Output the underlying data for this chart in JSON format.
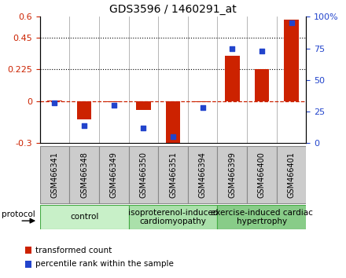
{
  "title": "GDS3596 / 1460291_at",
  "samples": [
    "GSM466341",
    "GSM466348",
    "GSM466349",
    "GSM466350",
    "GSM466351",
    "GSM466394",
    "GSM466399",
    "GSM466400",
    "GSM466401"
  ],
  "transformed_count": [
    0.005,
    -0.13,
    -0.005,
    -0.065,
    -0.31,
    -0.005,
    0.32,
    0.225,
    0.58
  ],
  "percentile_rank": [
    32,
    14,
    30,
    12,
    5,
    28,
    75,
    73,
    95
  ],
  "ylim_left": [
    -0.3,
    0.6
  ],
  "ylim_right": [
    0,
    100
  ],
  "yticks_left": [
    -0.3,
    0,
    0.225,
    0.45,
    0.6
  ],
  "yticks_right": [
    0,
    25,
    50,
    75,
    100
  ],
  "hlines": [
    0.225,
    0.45
  ],
  "protocol_groups": [
    {
      "label": "control",
      "start": 0,
      "end": 3
    },
    {
      "label": "isoproterenol-induced\ncardiomyopathy",
      "start": 3,
      "end": 6
    },
    {
      "label": "exercise-induced cardiac\nhypertrophy",
      "start": 6,
      "end": 9
    }
  ],
  "group_colors": [
    "#c8f0c8",
    "#aae0aa",
    "#88cc88"
  ],
  "group_edge_color": "#44aa44",
  "bar_color": "#cc2200",
  "dot_color": "#2244cc",
  "zero_line_color": "#cc2200",
  "label_box_color": "#cccccc",
  "label_box_edge": "#888888",
  "legend_items": [
    {
      "label": "transformed count",
      "color": "#cc2200"
    },
    {
      "label": "percentile rank within the sample",
      "color": "#2244cc"
    }
  ],
  "bar_width": 0.5,
  "title_fontsize": 10,
  "tick_fontsize": 8,
  "sample_fontsize": 7,
  "protocol_fontsize": 7.5,
  "legend_fontsize": 7.5
}
